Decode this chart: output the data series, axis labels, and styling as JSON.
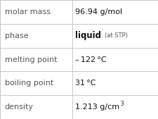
{
  "rows": [
    {
      "label": "molar mass",
      "value": "96.94 g/mol",
      "type": "normal"
    },
    {
      "label": "phase",
      "value": "liquid",
      "value_suffix": " (at STP)",
      "type": "phase"
    },
    {
      "label": "melting point",
      "value": "– 122 °C",
      "type": "normal"
    },
    {
      "label": "boiling point",
      "value": "31 °C",
      "type": "normal"
    },
    {
      "label": "density",
      "value": "1.213 g/cm",
      "superscript": "3",
      "type": "super"
    }
  ],
  "col_split": 0.455,
  "background_color": "#ffffff",
  "border_color": "#c8c8c8",
  "label_fontsize": 8.0,
  "value_fontsize": 8.0,
  "phase_value_fontsize": 8.5,
  "phase_suffix_fontsize": 6.0,
  "label_color": "#555555",
  "value_color": "#111111"
}
